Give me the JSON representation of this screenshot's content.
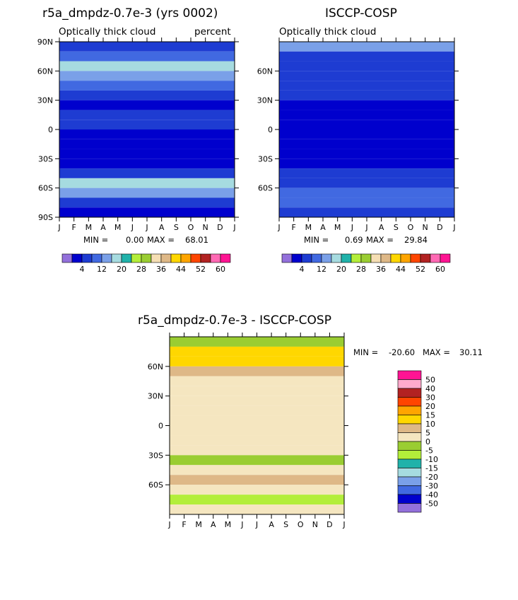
{
  "chart_data": [
    {
      "type": "heatmap",
      "title": "r5a_dmpdz-0.7e-3 (yrs 0002)",
      "subtitle_left": "Optically thick cloud",
      "subtitle_right": "percent",
      "x_ticks": [
        "J",
        "F",
        "M",
        "A",
        "M",
        "J",
        "J",
        "A",
        "S",
        "O",
        "N",
        "D",
        "J"
      ],
      "y_ticks": [
        "90N",
        "60N",
        "30N",
        "0",
        "30S",
        "60S",
        "90S"
      ],
      "ylim": [
        -90,
        90
      ],
      "min_label": "MIN =",
      "min": "0.00",
      "max_label": "MAX =",
      "max": "68.01",
      "colorbar_labels": [
        "4",
        "12",
        "20",
        "28",
        "36",
        "44",
        "52",
        "60"
      ],
      "zonal_values": [
        {
          "lat": 85,
          "v": 10
        },
        {
          "lat": 75,
          "v": 14
        },
        {
          "lat": 65,
          "v": 22
        },
        {
          "lat": 55,
          "v": 18
        },
        {
          "lat": 45,
          "v": 14
        },
        {
          "lat": 35,
          "v": 10
        },
        {
          "lat": 25,
          "v": 6
        },
        {
          "lat": 15,
          "v": 8
        },
        {
          "lat": 5,
          "v": 8
        },
        {
          "lat": -5,
          "v": 6
        },
        {
          "lat": -15,
          "v": 6
        },
        {
          "lat": -25,
          "v": 4
        },
        {
          "lat": -35,
          "v": 6
        },
        {
          "lat": -45,
          "v": 8
        },
        {
          "lat": -55,
          "v": 20
        },
        {
          "lat": -65,
          "v": 16
        },
        {
          "lat": -75,
          "v": 10
        },
        {
          "lat": -85,
          "v": 4
        }
      ]
    },
    {
      "type": "heatmap",
      "title": "ISCCP-COSP",
      "subtitle_left": "Optically thick cloud",
      "x_ticks": [
        "J",
        "F",
        "M",
        "A",
        "M",
        "J",
        "J",
        "A",
        "S",
        "O",
        "N",
        "D",
        "J"
      ],
      "y_ticks": [
        "60N",
        "30N",
        "0",
        "30S",
        "60S"
      ],
      "ylim": [
        -90,
        90
      ],
      "min_label": "MIN =",
      "min": "0.69",
      "max_label": "MAX =",
      "max": "29.84",
      "colorbar_labels": [
        "4",
        "12",
        "20",
        "28",
        "36",
        "44",
        "52",
        "60"
      ],
      "zonal_values": [
        {
          "lat": 85,
          "v": 16
        },
        {
          "lat": 75,
          "v": 10
        },
        {
          "lat": 65,
          "v": 8
        },
        {
          "lat": 55,
          "v": 10
        },
        {
          "lat": 45,
          "v": 10
        },
        {
          "lat": 35,
          "v": 10
        },
        {
          "lat": 25,
          "v": 6
        },
        {
          "lat": 15,
          "v": 4
        },
        {
          "lat": 5,
          "v": 6
        },
        {
          "lat": -5,
          "v": 6
        },
        {
          "lat": -15,
          "v": 4
        },
        {
          "lat": -25,
          "v": 6
        },
        {
          "lat": -35,
          "v": 6
        },
        {
          "lat": -45,
          "v": 8
        },
        {
          "lat": -55,
          "v": 10
        },
        {
          "lat": -65,
          "v": 12
        },
        {
          "lat": -75,
          "v": 14
        },
        {
          "lat": -85,
          "v": 8
        }
      ]
    },
    {
      "type": "heatmap",
      "title": "r5a_dmpdz-0.7e-3 - ISCCP-COSP",
      "x_ticks": [
        "J",
        "F",
        "M",
        "A",
        "M",
        "J",
        "J",
        "A",
        "S",
        "O",
        "N",
        "D",
        "J"
      ],
      "y_ticks": [
        "60N",
        "30N",
        "0",
        "30S",
        "60S"
      ],
      "ylim": [
        -90,
        90
      ],
      "min_label": "MIN =",
      "min": "-20.60",
      "max_label": "MAX =",
      "max": "30.11",
      "colorbar_labels": [
        "50",
        "40",
        "30",
        "20",
        "15",
        "10",
        "5",
        "0",
        "-5",
        "-10",
        "-15",
        "-20",
        "-30",
        "-40",
        "-50"
      ],
      "zonal_values": [
        {
          "lat": 85,
          "v": -5
        },
        {
          "lat": 75,
          "v": 10
        },
        {
          "lat": 65,
          "v": 10
        },
        {
          "lat": 55,
          "v": 5
        },
        {
          "lat": 45,
          "v": 2
        },
        {
          "lat": 35,
          "v": 0
        },
        {
          "lat": 25,
          "v": 0
        },
        {
          "lat": 15,
          "v": 0
        },
        {
          "lat": 5,
          "v": 0
        },
        {
          "lat": -5,
          "v": 0
        },
        {
          "lat": -15,
          "v": 0
        },
        {
          "lat": -25,
          "v": 0
        },
        {
          "lat": -35,
          "v": -5
        },
        {
          "lat": -45,
          "v": 2
        },
        {
          "lat": -55,
          "v": 5
        },
        {
          "lat": -65,
          "v": 0
        },
        {
          "lat": -75,
          "v": -10
        },
        {
          "lat": -85,
          "v": 0
        }
      ]
    }
  ],
  "colors": {
    "abs_scale": [
      "#9370db",
      "#0000cd",
      "#1e3cd2",
      "#4169e1",
      "#7aa0e8",
      "#a6dbe0",
      "#20b2aa",
      "#b3ee3a",
      "#9acd32",
      "#f5deb3",
      "#deb887",
      "#ffd700",
      "#ffa500",
      "#ff4500",
      "#b22222",
      "#ff69b4",
      "#ff1493"
    ],
    "diff_scale": [
      "#ff1493",
      "#ffaacc",
      "#b22222",
      "#ff4500",
      "#ffa500",
      "#ffd700",
      "#deb887",
      "#f5e6c0",
      "#9acd32",
      "#b3ee3a",
      "#20b2aa",
      "#a6dbe0",
      "#7aa0e8",
      "#4169e1",
      "#0000cd",
      "#9370db"
    ],
    "missing": "#ffffff"
  }
}
